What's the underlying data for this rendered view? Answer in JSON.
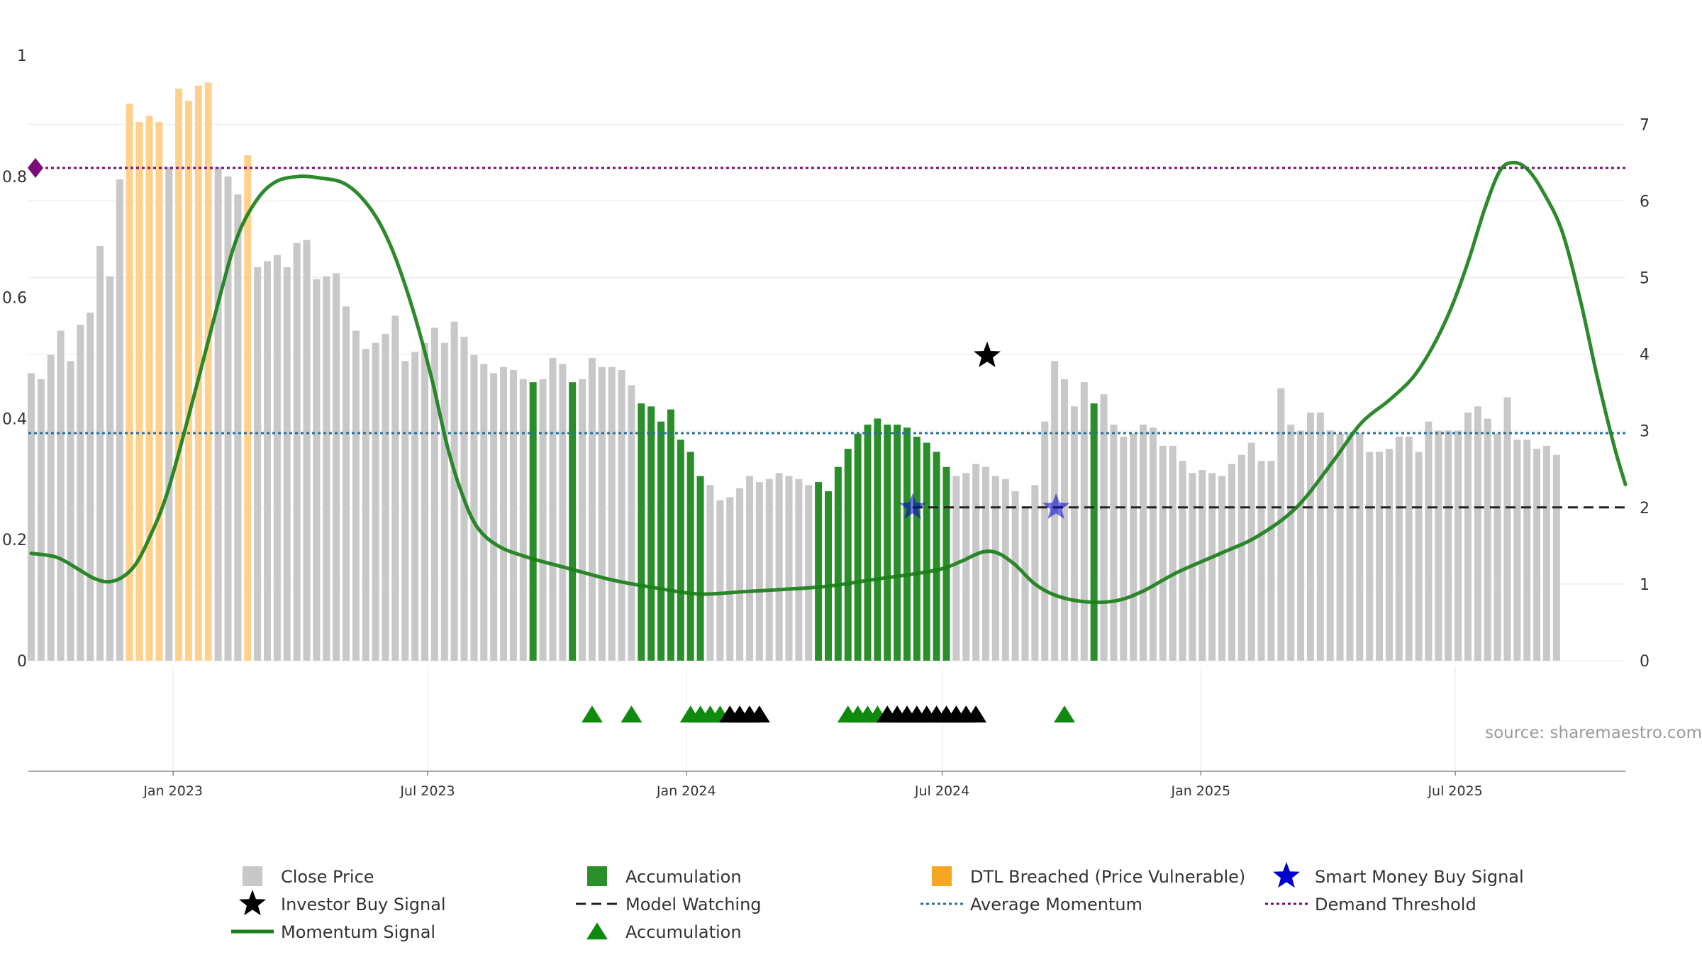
{
  "chart_data": {
    "type": "bar",
    "source": "source: sharemaestro.com",
    "x_axis": {
      "range": [
        "2022-09-20",
        "2025-10-30"
      ],
      "ticks": [
        {
          "date": "2023-01-01",
          "label": "Jan 2023"
        },
        {
          "date": "2023-07-01",
          "label": "Jul 2023"
        },
        {
          "date": "2024-01-01",
          "label": "Jan 2024"
        },
        {
          "date": "2024-07-01",
          "label": "Jul 2024"
        },
        {
          "date": "2025-01-01",
          "label": "Jan 2025"
        },
        {
          "date": "2025-07-01",
          "label": "Jul 2025"
        }
      ]
    },
    "y_left": {
      "range": [
        0,
        1
      ],
      "ticks": [
        {
          "v": 0,
          "label": "0"
        },
        {
          "v": 0.2,
          "label": "0.2"
        },
        {
          "v": 0.4,
          "label": "0.4"
        },
        {
          "v": 0.6,
          "label": "0.6"
        },
        {
          "v": 0.8,
          "label": "0.8"
        },
        {
          "v": 1,
          "label": "1"
        }
      ]
    },
    "y_right": {
      "range": [
        0,
        7.9
      ],
      "ticks": [
        {
          "v": 0,
          "label": "0"
        },
        {
          "v": 1,
          "label": "1"
        },
        {
          "v": 2,
          "label": "2"
        },
        {
          "v": 3,
          "label": "3"
        },
        {
          "v": 4,
          "label": "4"
        },
        {
          "v": 5,
          "label": "5"
        },
        {
          "v": 6,
          "label": "6"
        },
        {
          "v": 7,
          "label": "7"
        }
      ]
    },
    "colors": {
      "close": "#c8c8c8",
      "accumulation": "#2a8f2a",
      "dtl": "#ffcf86",
      "momentum": "#1a7f1a",
      "avg": "#2a6f97",
      "threshold": "#7b0b7b",
      "watch": "#222222",
      "buy": "#0000cc"
    },
    "bars": {
      "start": "2022-09-22",
      "step_days": 7,
      "values": [
        0.475,
        0.465,
        0.505,
        0.545,
        0.495,
        0.555,
        0.575,
        0.685,
        0.635,
        0.795,
        0.92,
        0.89,
        0.9,
        0.89,
        0.815,
        0.945,
        0.925,
        0.95,
        0.955,
        0.815,
        0.8,
        0.77,
        0.835,
        0.65,
        0.66,
        0.67,
        0.65,
        0.69,
        0.695,
        0.63,
        0.635,
        0.64,
        0.585,
        0.545,
        0.515,
        0.525,
        0.54,
        0.57,
        0.495,
        0.51,
        0.525,
        0.55,
        0.525,
        0.56,
        0.535,
        0.505,
        0.49,
        0.475,
        0.485,
        0.48,
        0.465,
        0.46,
        0.465,
        0.5,
        0.49,
        0.46,
        0.465,
        0.5,
        0.485,
        0.485,
        0.48,
        0.455,
        0.425,
        0.42,
        0.395,
        0.415,
        0.365,
        0.345,
        0.305,
        0.29,
        0.265,
        0.27,
        0.285,
        0.305,
        0.295,
        0.3,
        0.31,
        0.305,
        0.3,
        0.29,
        0.295,
        0.28,
        0.32,
        0.35,
        0.375,
        0.39,
        0.4,
        0.39,
        0.39,
        0.385,
        0.37,
        0.36,
        0.345,
        0.32,
        0.305,
        0.31,
        0.325,
        0.32,
        0.305,
        0.3,
        0.28,
        0.255,
        0.29,
        0.395,
        0.495,
        0.465,
        0.42,
        0.46,
        0.425,
        0.44,
        0.39,
        0.37,
        0.375,
        0.39,
        0.385,
        0.355,
        0.355,
        0.33,
        0.31,
        0.315,
        0.31,
        0.305,
        0.325,
        0.34,
        0.36,
        0.33,
        0.33,
        0.45,
        0.39,
        0.38,
        0.41,
        0.41,
        0.38,
        0.375,
        0.375,
        0.375,
        0.345,
        0.345,
        0.35,
        0.37,
        0.37,
        0.345,
        0.395,
        0.38,
        0.38,
        0.38,
        0.41,
        0.42,
        0.4,
        0.375,
        0.435,
        0.365,
        0.365,
        0.35,
        0.355,
        0.34
      ],
      "status": "GGGGGGGGGGOOOOGOOOOGGGOGGGGGGGGGGGGGGGGGGGGGGGGGGGGAGGGAGGGGGGAAAAAAAGGGGGGGGGGGAAAAAAAAAAAAAAGGGGGGGGGGGGGGAGGGGGGGGGGGGGGGGGGGGGGGGGGGGGGGGGGGGGGGGGGGGGGGGG"
    },
    "momentum_signal": [
      [
        "2022-09-22",
        1.4
      ],
      [
        "2022-10-10",
        1.35
      ],
      [
        "2022-10-25",
        1.2
      ],
      [
        "2022-11-05",
        1.08
      ],
      [
        "2022-11-15",
        1.03
      ],
      [
        "2022-11-25",
        1.08
      ],
      [
        "2022-12-05",
        1.25
      ],
      [
        "2022-12-15",
        1.6
      ],
      [
        "2022-12-28",
        2.2
      ],
      [
        "2023-01-15",
        3.4
      ],
      [
        "2023-02-01",
        4.6
      ],
      [
        "2023-02-15",
        5.5
      ],
      [
        "2023-03-01",
        6.0
      ],
      [
        "2023-03-15",
        6.25
      ],
      [
        "2023-04-01",
        6.32
      ],
      [
        "2023-04-15",
        6.3
      ],
      [
        "2023-04-30",
        6.25
      ],
      [
        "2023-05-12",
        6.1
      ],
      [
        "2023-05-25",
        5.8
      ],
      [
        "2023-06-05",
        5.4
      ],
      [
        "2023-06-15",
        4.9
      ],
      [
        "2023-06-25",
        4.3
      ],
      [
        "2023-07-05",
        3.6
      ],
      [
        "2023-07-15",
        2.8
      ],
      [
        "2023-07-25",
        2.2
      ],
      [
        "2023-08-05",
        1.75
      ],
      [
        "2023-08-20",
        1.5
      ],
      [
        "2023-09-10",
        1.35
      ],
      [
        "2023-10-10",
        1.2
      ],
      [
        "2023-11-10",
        1.05
      ],
      [
        "2023-12-10",
        0.95
      ],
      [
        "2024-01-10",
        0.87
      ],
      [
        "2024-02-10",
        0.9
      ],
      [
        "2024-03-10",
        0.93
      ],
      [
        "2024-04-10",
        0.97
      ],
      [
        "2024-05-10",
        1.05
      ],
      [
        "2024-06-10",
        1.13
      ],
      [
        "2024-07-01",
        1.2
      ],
      [
        "2024-07-15",
        1.3
      ],
      [
        "2024-07-30",
        1.42
      ],
      [
        "2024-08-10",
        1.4
      ],
      [
        "2024-08-22",
        1.25
      ],
      [
        "2024-09-05",
        1.0
      ],
      [
        "2024-09-20",
        0.85
      ],
      [
        "2024-10-10",
        0.77
      ],
      [
        "2024-11-01",
        0.78
      ],
      [
        "2024-11-20",
        0.9
      ],
      [
        "2024-12-15",
        1.15
      ],
      [
        "2025-01-15",
        1.4
      ],
      [
        "2025-02-10",
        1.62
      ],
      [
        "2025-03-10",
        2.0
      ],
      [
        "2025-04-05",
        2.6
      ],
      [
        "2025-04-25",
        3.1
      ],
      [
        "2025-05-15",
        3.4
      ],
      [
        "2025-06-01",
        3.7
      ],
      [
        "2025-06-15",
        4.1
      ],
      [
        "2025-06-28",
        4.6
      ],
      [
        "2025-07-10",
        5.2
      ],
      [
        "2025-07-22",
        5.9
      ],
      [
        "2025-08-02",
        6.4
      ],
      [
        "2025-08-12",
        6.5
      ],
      [
        "2025-08-22",
        6.4
      ],
      [
        "2025-09-02",
        6.1
      ],
      [
        "2025-09-15",
        5.6
      ],
      [
        "2025-09-28",
        4.7
      ],
      [
        "2025-10-10",
        3.7
      ],
      [
        "2025-10-22",
        2.8
      ],
      [
        "2025-10-30",
        2.3
      ]
    ],
    "series": [
      {
        "name": "Close Price"
      },
      {
        "name": "Accumulation"
      },
      {
        "name": "DTL Breached (Price Vulnerable)"
      },
      {
        "name": "Smart Money Buy Signal"
      },
      {
        "name": "Investor Buy Signal"
      },
      {
        "name": "Model Watching"
      },
      {
        "name": "Average Momentum",
        "value": 2.97
      },
      {
        "name": "Demand Threshold",
        "value": 6.43
      },
      {
        "name": "Momentum Signal"
      },
      {
        "name": "Accumulation"
      }
    ],
    "investor_buy_signal": {
      "date": "2024-08-02",
      "value": 3.98
    },
    "smart_money_buy_signals": [
      {
        "date": "2024-06-10",
        "value": 2.0
      },
      {
        "date": "2024-09-20",
        "value": 2.0
      }
    ],
    "model_watching": {
      "start": "2024-06-10",
      "end": "2025-10-30",
      "value": 2.0
    },
    "triangle_markers": {
      "green": [
        "2023-10-26",
        "2023-11-23",
        "2024-01-04",
        "2024-01-11",
        "2024-01-18",
        "2024-01-25",
        "2024-04-25",
        "2024-05-02",
        "2024-05-09",
        "2024-05-16",
        "2024-09-26"
      ],
      "black": [
        "2024-02-01",
        "2024-02-08",
        "2024-02-15",
        "2024-02-22",
        "2024-05-23",
        "2024-05-30",
        "2024-06-06",
        "2024-06-13",
        "2024-06-20",
        "2024-06-27",
        "2024-07-04",
        "2024-07-11",
        "2024-07-18",
        "2024-07-25"
      ]
    },
    "grid": true,
    "legend_position": "bottom"
  }
}
